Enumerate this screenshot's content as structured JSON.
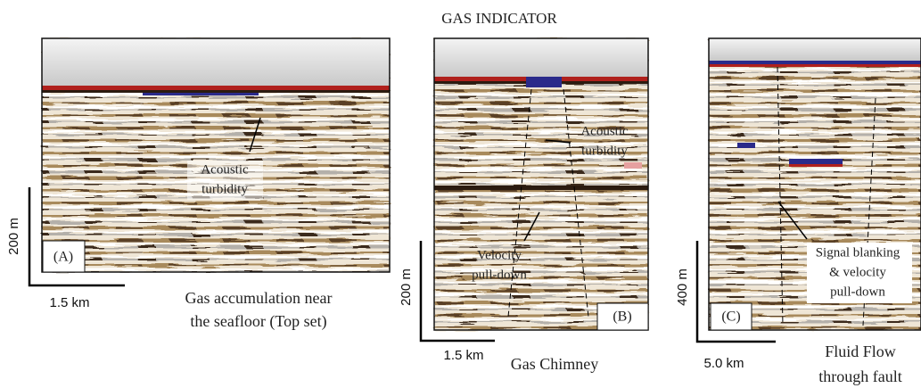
{
  "title": "GAS INDICATOR",
  "panels": [
    {
      "label": "(A)",
      "caption": [
        "Gas accumulation near",
        "the seafloor (Top set)"
      ],
      "annotations": [
        [
          "Acoustic",
          "turbidity"
        ]
      ],
      "scale": {
        "vertical": "200 m",
        "horizontal": "1.5 km"
      }
    },
    {
      "label": "(B)",
      "caption": [
        "Gas Chimney"
      ],
      "annotations": [
        [
          "Acoustic",
          "turbidity"
        ],
        [
          "Velocity",
          "pull-down"
        ]
      ],
      "scale": {
        "vertical": "200 m",
        "horizontal": "1.5 km"
      }
    },
    {
      "label": "(C)",
      "caption": [
        "Fluid Flow",
        "through fault"
      ],
      "annotations": [
        [
          "Signal blanking",
          "& velocity",
          "pull-down"
        ]
      ],
      "scale": {
        "vertical": "400 m",
        "horizontal": "5.0 km"
      }
    }
  ]
}
